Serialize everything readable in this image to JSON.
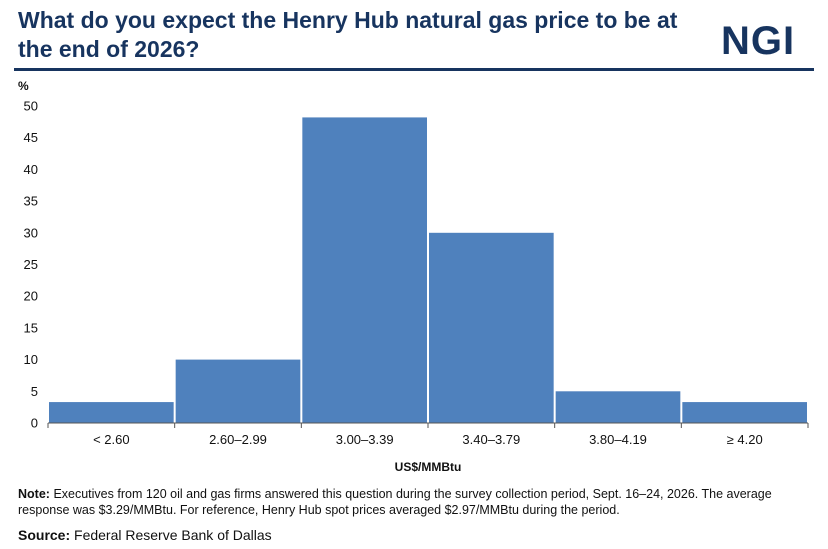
{
  "header": {
    "title": "What do you expect the Henry Hub natural gas price to be at the end of 2026?",
    "logo_text": "NGI",
    "brand_color": "#17345f"
  },
  "chart_data": {
    "type": "bar",
    "categories": [
      "< 2.60",
      "2.60–2.99",
      "3.00–3.39",
      "3.40–3.79",
      "3.80–4.19",
      "≥ 4.20"
    ],
    "values": [
      3.3,
      10,
      48.2,
      30,
      5,
      3.3
    ],
    "ylabel": "%",
    "xlabel": "US$/MMBtu",
    "ylim": [
      0,
      50
    ],
    "yticks": [
      0,
      5,
      10,
      15,
      20,
      25,
      30,
      35,
      40,
      45,
      50
    ],
    "grid": false,
    "bar_color": "#4f81bd"
  },
  "footer": {
    "note_label": "Note:",
    "note_text": "Executives from 120 oil and gas firms answered this question during the survey collection period, Sept. 16–24, 2026. The average response was $3.29/MMBtu. For reference, Henry Hub spot prices averaged $2.97/MMBtu during the period.",
    "source_label": "Source:",
    "source_text": "Federal Reserve Bank of Dallas"
  }
}
